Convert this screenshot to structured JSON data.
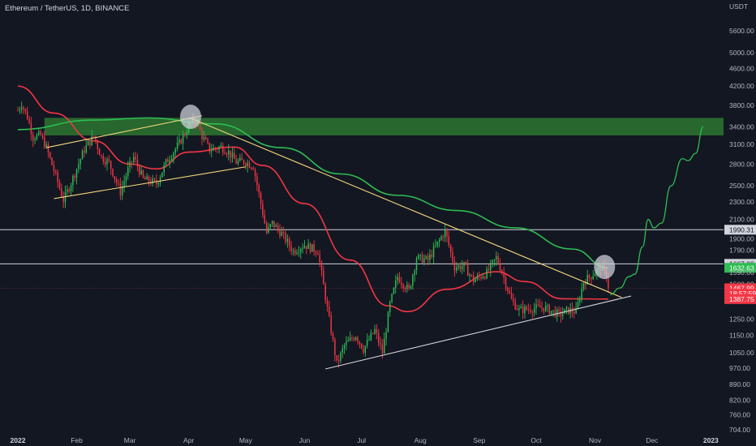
{
  "header": {
    "symbol": "Ethereum / TetherUS",
    "sep1": ", ",
    "interval": "1D",
    "sep2": ", ",
    "exchange": "BINANCE"
  },
  "colors": {
    "background": "#131722",
    "up": "#26a69a",
    "up_candle": "#2dbd52",
    "down_candle": "#f23645",
    "ema_fast": "#f23645",
    "ma_slow": "#2dbd52",
    "trendline": "#f5d77a",
    "support_line": "#d1d4dc",
    "zone": "#2e7d32"
  },
  "chart_data": {
    "type": "candlestick",
    "price_axis_unit": "USDT",
    "y_scale": "log",
    "ylim": [
      680,
      6300
    ],
    "x_range": [
      "2022-01-01",
      "2023-01-03"
    ],
    "x_tick_labels": [
      "2022",
      "Feb",
      "Mar",
      "Apr",
      "May",
      "Jun",
      "Jul",
      "Aug",
      "Sep",
      "Oct",
      "Nov",
      "Dec",
      "2023"
    ],
    "x_tick_dates": [
      "2022-01-01",
      "2022-02-01",
      "2022-03-01",
      "2022-04-01",
      "2022-05-01",
      "2022-06-01",
      "2022-07-01",
      "2022-08-01",
      "2022-09-01",
      "2022-10-01",
      "2022-11-01",
      "2022-12-01",
      "2023-01-01"
    ],
    "y_tick_labels": [
      704,
      760,
      820,
      890,
      970,
      1050,
      1150,
      1250,
      1380,
      1500,
      1640,
      1790,
      1900,
      2100,
      2300,
      2500,
      2800,
      3100,
      3400,
      3800,
      4200,
      4600,
      5000,
      5600
    ],
    "price_path": [
      {
        "date": "2022-01-01",
        "price": 3700
      },
      {
        "date": "2022-01-03",
        "price": 3830
      },
      {
        "date": "2022-01-06",
        "price": 3580
      },
      {
        "date": "2022-01-09",
        "price": 3220
      },
      {
        "date": "2022-01-13",
        "price": 3250
      },
      {
        "date": "2022-01-16",
        "price": 3050
      },
      {
        "date": "2022-01-22",
        "price": 2550
      },
      {
        "date": "2022-01-25",
        "price": 2320
      },
      {
        "date": "2022-01-29",
        "price": 2540
      },
      {
        "date": "2022-02-05",
        "price": 3020
      },
      {
        "date": "2022-02-10",
        "price": 3240
      },
      {
        "date": "2022-02-14",
        "price": 2900
      },
      {
        "date": "2022-02-18",
        "price": 2820
      },
      {
        "date": "2022-02-24",
        "price": 2420
      },
      {
        "date": "2022-02-28",
        "price": 2720
      },
      {
        "date": "2022-03-03",
        "price": 2900
      },
      {
        "date": "2022-03-08",
        "price": 2590
      },
      {
        "date": "2022-03-15",
        "price": 2530
      },
      {
        "date": "2022-03-20",
        "price": 2820
      },
      {
        "date": "2022-03-27",
        "price": 3120
      },
      {
        "date": "2022-04-02",
        "price": 3470
      },
      {
        "date": "2022-04-05",
        "price": 3520
      },
      {
        "date": "2022-04-08",
        "price": 3240
      },
      {
        "date": "2022-04-12",
        "price": 3020
      },
      {
        "date": "2022-04-18",
        "price": 3060
      },
      {
        "date": "2022-04-22",
        "price": 2980
      },
      {
        "date": "2022-04-26",
        "price": 2830
      },
      {
        "date": "2022-04-30",
        "price": 2840
      },
      {
        "date": "2022-05-05",
        "price": 2770
      },
      {
        "date": "2022-05-09",
        "price": 2280
      },
      {
        "date": "2022-05-12",
        "price": 1960
      },
      {
        "date": "2022-05-15",
        "price": 2060
      },
      {
        "date": "2022-05-20",
        "price": 1950
      },
      {
        "date": "2022-05-26",
        "price": 1780
      },
      {
        "date": "2022-06-01",
        "price": 1840
      },
      {
        "date": "2022-06-08",
        "price": 1780
      },
      {
        "date": "2022-06-13",
        "price": 1320
      },
      {
        "date": "2022-06-18",
        "price": 990
      },
      {
        "date": "2022-06-22",
        "price": 1090
      },
      {
        "date": "2022-06-28",
        "price": 1150
      },
      {
        "date": "2022-07-02",
        "price": 1070
      },
      {
        "date": "2022-07-08",
        "price": 1180
      },
      {
        "date": "2022-07-12",
        "price": 1050
      },
      {
        "date": "2022-07-16",
        "price": 1350
      },
      {
        "date": "2022-07-20",
        "price": 1560
      },
      {
        "date": "2022-07-26",
        "price": 1450
      },
      {
        "date": "2022-07-30",
        "price": 1720
      },
      {
        "date": "2022-08-05",
        "price": 1700
      },
      {
        "date": "2022-08-10",
        "price": 1850
      },
      {
        "date": "2022-08-14",
        "price": 1980
      },
      {
        "date": "2022-08-19",
        "price": 1640
      },
      {
        "date": "2022-08-24",
        "price": 1650
      },
      {
        "date": "2022-08-29",
        "price": 1530
      },
      {
        "date": "2022-09-05",
        "price": 1590
      },
      {
        "date": "2022-09-10",
        "price": 1720
      },
      {
        "date": "2022-09-13",
        "price": 1600
      },
      {
        "date": "2022-09-18",
        "price": 1380
      },
      {
        "date": "2022-09-22",
        "price": 1310
      },
      {
        "date": "2022-09-28",
        "price": 1320
      },
      {
        "date": "2022-10-05",
        "price": 1330
      },
      {
        "date": "2022-10-13",
        "price": 1280
      },
      {
        "date": "2022-10-18",
        "price": 1310
      },
      {
        "date": "2022-10-22",
        "price": 1300
      },
      {
        "date": "2022-10-26",
        "price": 1520
      },
      {
        "date": "2022-10-31",
        "price": 1580
      },
      {
        "date": "2022-11-04",
        "price": 1640
      },
      {
        "date": "2022-11-07",
        "price": 1570
      },
      {
        "date": "2022-11-08",
        "price": 1467.99
      }
    ],
    "series": [
      {
        "name": "",
        "kind": "moving_average_fast",
        "points": [
          {
            "date": "2022-01-01",
            "price": 4200
          },
          {
            "date": "2022-01-20",
            "price": 3650
          },
          {
            "date": "2022-02-10",
            "price": 3160
          },
          {
            "date": "2022-03-01",
            "price": 2800
          },
          {
            "date": "2022-03-15",
            "price": 2730
          },
          {
            "date": "2022-04-01",
            "price": 2980
          },
          {
            "date": "2022-04-25",
            "price": 3060
          },
          {
            "date": "2022-05-10",
            "price": 2780
          },
          {
            "date": "2022-06-01",
            "price": 2280
          },
          {
            "date": "2022-06-25",
            "price": 1700
          },
          {
            "date": "2022-07-15",
            "price": 1340
          },
          {
            "date": "2022-07-25",
            "price": 1300
          },
          {
            "date": "2022-08-15",
            "price": 1460
          },
          {
            "date": "2022-09-10",
            "price": 1600
          },
          {
            "date": "2022-09-25",
            "price": 1520
          },
          {
            "date": "2022-10-15",
            "price": 1390
          },
          {
            "date": "2022-11-08",
            "price": 1387.75
          }
        ]
      },
      {
        "name": "",
        "kind": "moving_average_slow",
        "points": [
          {
            "date": "2022-01-01",
            "price": 3350
          },
          {
            "date": "2022-02-10",
            "price": 3520
          },
          {
            "date": "2022-03-10",
            "price": 3560
          },
          {
            "date": "2022-04-15",
            "price": 3450
          },
          {
            "date": "2022-05-20",
            "price": 3050
          },
          {
            "date": "2022-06-20",
            "price": 2660
          },
          {
            "date": "2022-07-20",
            "price": 2380
          },
          {
            "date": "2022-08-20",
            "price": 2200
          },
          {
            "date": "2022-09-20",
            "price": 2010
          },
          {
            "date": "2022-10-20",
            "price": 1800
          },
          {
            "date": "2022-11-08",
            "price": 1632.63
          }
        ]
      }
    ],
    "projection_path": [
      {
        "date": "2022-11-09",
        "price": 1420
      },
      {
        "date": "2022-11-14",
        "price": 1470
      },
      {
        "date": "2022-11-19",
        "price": 1560
      },
      {
        "date": "2022-11-22",
        "price": 1580
      },
      {
        "date": "2022-11-26",
        "price": 1820
      },
      {
        "date": "2022-11-29",
        "price": 2100
      },
      {
        "date": "2022-12-02",
        "price": 2010
      },
      {
        "date": "2022-12-06",
        "price": 2060
      },
      {
        "date": "2022-12-11",
        "price": 2500
      },
      {
        "date": "2022-12-17",
        "price": 2880
      },
      {
        "date": "2022-12-20",
        "price": 2850
      },
      {
        "date": "2022-12-24",
        "price": 2960
      },
      {
        "date": "2022-12-28",
        "price": 3400
      }
    ],
    "zone": {
      "from_price": 3250,
      "to_price": 3560,
      "from_date": "2022-01-15"
    },
    "horizontal_levels": [
      1990.31,
      1667.08
    ],
    "trendlines": [
      {
        "name": "channel-top",
        "from": {
          "date": "2022-01-16",
          "price": 3050
        },
        "to": {
          "date": "2022-04-08",
          "price": 3600
        }
      },
      {
        "name": "channel-bottom",
        "from": {
          "date": "2022-01-20",
          "price": 2340
        },
        "to": {
          "date": "2022-05-01",
          "price": 2760
        }
      },
      {
        "name": "downtrend",
        "from": {
          "date": "2022-04-01",
          "price": 3570
        },
        "to": {
          "date": "2022-11-15",
          "price": 1400
        }
      },
      {
        "name": "uptrend-support",
        "from": {
          "date": "2022-06-12",
          "price": 965
        },
        "to": {
          "date": "2022-11-20",
          "price": 1410
        }
      }
    ],
    "circles": [
      {
        "date": "2022-04-02",
        "price": 3580
      },
      {
        "date": "2022-11-06",
        "price": 1640
      }
    ],
    "price_labels": [
      {
        "text": "1990.31",
        "price": 1990.31,
        "style": "level"
      },
      {
        "text": "1667.08",
        "price": 1667.08,
        "style": "level"
      },
      {
        "text": "1632.63",
        "price": 1632.63,
        "style": "green"
      },
      {
        "text": "1590.00",
        "price": 1592,
        "style": "tick"
      },
      {
        "text": "1467.99",
        "price": 1467.99,
        "style": "red"
      },
      {
        "text": "18:57:59",
        "price": 1427,
        "style": "red-sub"
      },
      {
        "text": "1387.75",
        "price": 1387.75,
        "style": "red"
      }
    ],
    "grid": false,
    "legend": "none"
  }
}
